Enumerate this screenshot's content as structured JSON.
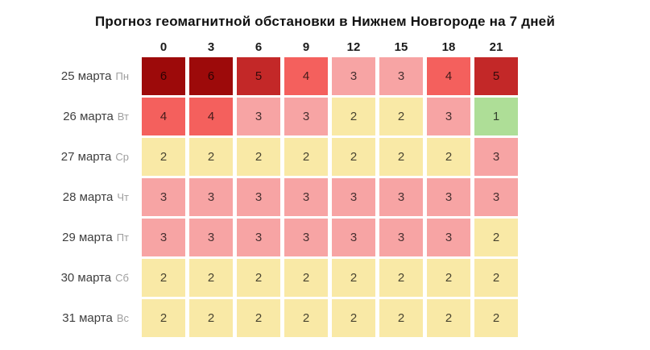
{
  "chart_data": {
    "type": "heatmap",
    "title": "Прогноз геомагнитной обстановки в Нижнем Новгороде на 7 дней",
    "xlabel": "",
    "ylabel": "",
    "x_ticks": [
      "0",
      "3",
      "6",
      "9",
      "12",
      "15",
      "18",
      "21"
    ],
    "rows": [
      {
        "date": "25 марта",
        "weekday": "Пн",
        "values": [
          6,
          6,
          5,
          4,
          3,
          3,
          4,
          5
        ]
      },
      {
        "date": "26 марта",
        "weekday": "Вт",
        "values": [
          4,
          4,
          3,
          3,
          2,
          2,
          3,
          1
        ]
      },
      {
        "date": "27 марта",
        "weekday": "Ср",
        "values": [
          2,
          2,
          2,
          2,
          2,
          2,
          2,
          3
        ]
      },
      {
        "date": "28 марта",
        "weekday": "Чт",
        "values": [
          3,
          3,
          3,
          3,
          3,
          3,
          3,
          3
        ]
      },
      {
        "date": "29 марта",
        "weekday": "Пт",
        "values": [
          3,
          3,
          3,
          3,
          3,
          3,
          3,
          2
        ]
      },
      {
        "date": "30 марта",
        "weekday": "Сб",
        "values": [
          2,
          2,
          2,
          2,
          2,
          2,
          2,
          2
        ]
      },
      {
        "date": "31 марта",
        "weekday": "Вс",
        "values": [
          2,
          2,
          2,
          2,
          2,
          2,
          2,
          2
        ]
      }
    ],
    "value_range": [
      1,
      6
    ],
    "scale_colors": {
      "1": "#aede97",
      "2": "#f9e9a6",
      "3": "#f7a4a4",
      "4": "#f4605d",
      "5": "#c32828",
      "6": "#9d0a0a"
    },
    "legend_position": "none",
    "grid": false
  }
}
